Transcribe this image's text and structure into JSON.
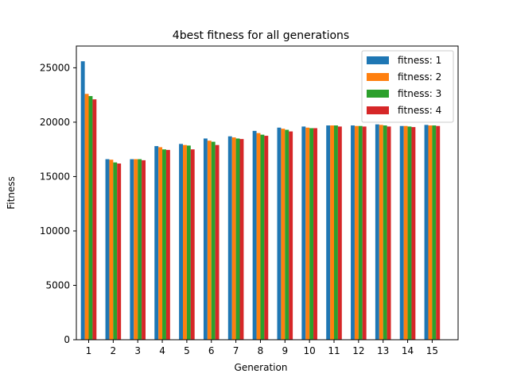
{
  "chart_data": {
    "type": "bar",
    "title": "4best fitness for all generations",
    "xlabel": "Generation",
    "ylabel": "Fitness",
    "categories": [
      "1",
      "2",
      "3",
      "4",
      "5",
      "6",
      "7",
      "8",
      "9",
      "10",
      "11",
      "12",
      "13",
      "14",
      "15"
    ],
    "ylim": [
      0,
      27000
    ],
    "yticks": [
      0,
      5000,
      10000,
      15000,
      20000,
      25000
    ],
    "grid": false,
    "legend_position": "top-right",
    "series": [
      {
        "name": "fitness: 1",
        "color": "#1f77b4",
        "values": [
          25600,
          16600,
          16600,
          17800,
          18000,
          18500,
          18700,
          19200,
          19500,
          19600,
          19700,
          19700,
          19800,
          19650,
          19750
        ]
      },
      {
        "name": "fitness: 2",
        "color": "#ff7f0e",
        "values": [
          22600,
          16550,
          16600,
          17700,
          17900,
          18300,
          18600,
          19000,
          19400,
          19500,
          19700,
          19650,
          19750,
          19650,
          19700
        ]
      },
      {
        "name": "fitness: 3",
        "color": "#2ca02c",
        "values": [
          22400,
          16300,
          16600,
          17500,
          17850,
          18200,
          18500,
          18850,
          19300,
          19450,
          19700,
          19650,
          19700,
          19600,
          19700
        ]
      },
      {
        "name": "fitness: 4",
        "color": "#d62728",
        "values": [
          22100,
          16200,
          16500,
          17450,
          17500,
          17900,
          18450,
          18750,
          19150,
          19450,
          19600,
          19600,
          19600,
          19550,
          19650
        ]
      }
    ]
  }
}
